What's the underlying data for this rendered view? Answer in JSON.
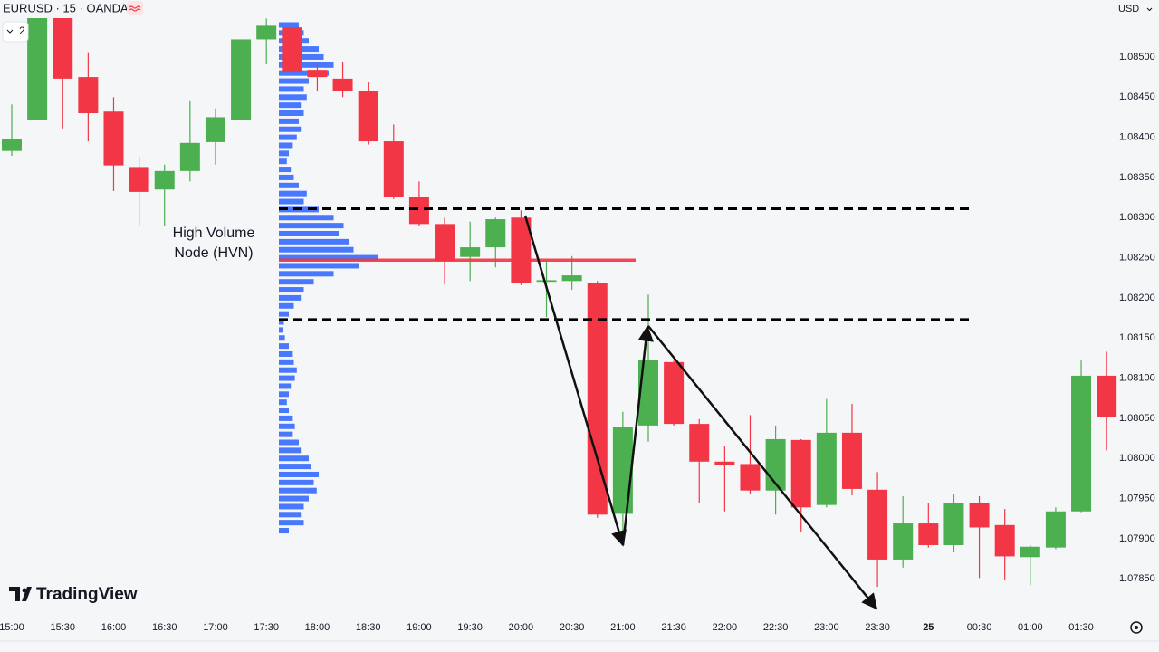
{
  "toolbar": {
    "symbol": "EURUSD · 15 · OANDA",
    "interval_button": "2",
    "currency": "USD",
    "brand": "TradingView"
  },
  "chart_data": {
    "type": "candlestick",
    "categories": [
      "15:00",
      null,
      "15:30",
      null,
      "16:00",
      null,
      "16:30",
      null,
      "17:00",
      null,
      "17:30",
      null,
      "18:00",
      null,
      "18:30",
      null,
      "19:00",
      null,
      "19:30",
      null,
      "20:00",
      null,
      "20:30",
      null,
      "21:00",
      null,
      "21:30",
      null,
      "22:00",
      null,
      "22:30",
      null,
      "23:00",
      null,
      "23:30",
      null,
      "25",
      null,
      "00:30",
      null,
      "01:00",
      null,
      "01:30",
      null
    ],
    "open": [
      1.08383,
      1.08421,
      1.08551,
      1.08475,
      1.08432,
      1.08363,
      1.08335,
      1.08358,
      1.08394,
      1.08422,
      1.08522,
      1.08537,
      1.08484,
      1.08473,
      1.08458,
      1.08395,
      1.08326,
      1.08292,
      1.08251,
      1.08263,
      1.083,
      1.0822,
      1.08221,
      1.08219,
      1.07931,
      1.08041,
      1.0812,
      1.08043,
      1.07996,
      1.07993,
      1.0796,
      1.08023,
      1.07942,
      1.08032,
      1.07961,
      1.07874,
      1.07919,
      1.07892,
      1.07945,
      1.07917,
      1.07877,
      1.07889,
      1.07934,
      1.08103
    ],
    "high": [
      1.08441,
      1.08565,
      1.0856,
      1.08506,
      1.0845,
      1.08376,
      1.08366,
      1.08446,
      1.08436,
      1.08522,
      1.08548,
      1.08539,
      1.08494,
      1.08494,
      1.08469,
      1.08416,
      1.08345,
      1.083,
      1.08295,
      1.083,
      1.08309,
      1.08247,
      1.08252,
      1.08221,
      1.08058,
      1.08204,
      1.08122,
      1.08049,
      1.08015,
      1.08054,
      1.08041,
      1.08024,
      1.08074,
      1.08068,
      1.07983,
      1.07953,
      1.07945,
      1.07956,
      1.07953,
      1.07937,
      1.07892,
      1.07939,
      1.08122,
      1.08133
    ],
    "low": [
      1.08377,
      1.08421,
      1.08411,
      1.08395,
      1.08333,
      1.08289,
      1.08289,
      1.08345,
      1.08366,
      1.08422,
      1.08491,
      1.08479,
      1.08458,
      1.0845,
      1.08391,
      1.08323,
      1.08289,
      1.08217,
      1.08221,
      1.08238,
      1.08216,
      1.08176,
      1.0821,
      1.07926,
      1.07906,
      1.08021,
      1.08041,
      1.07944,
      1.07934,
      1.07956,
      1.0793,
      1.07908,
      1.07939,
      1.07954,
      1.0784,
      1.07864,
      1.07889,
      1.07883,
      1.07851,
      1.07849,
      1.07842,
      1.07887,
      1.07933,
      1.0801
    ],
    "close": [
      1.08398,
      1.08554,
      1.08473,
      1.0843,
      1.08365,
      1.08332,
      1.08358,
      1.08393,
      1.08425,
      1.08522,
      1.08539,
      1.08481,
      1.08475,
      1.08458,
      1.08395,
      1.08326,
      1.08292,
      1.08246,
      1.08263,
      1.08298,
      1.08219,
      1.08222,
      1.08228,
      1.0793,
      1.08039,
      1.08123,
      1.08043,
      1.07996,
      1.07992,
      1.0796,
      1.08024,
      1.07939,
      1.08032,
      1.07962,
      1.07874,
      1.07919,
      1.07892,
      1.07945,
      1.07914,
      1.07878,
      1.0789,
      1.07934,
      1.08103,
      1.08052
    ],
    "up_color": "#4caf50",
    "down_color": "#f23645",
    "ylim": [
      1.07804,
      1.08571
    ],
    "yticks": [
      {
        "value": 1.085,
        "label": "1.08500"
      },
      {
        "value": 1.0845,
        "label": "1.08450"
      },
      {
        "value": 1.084,
        "label": "1.08400"
      },
      {
        "value": 1.0835,
        "label": "1.08350"
      },
      {
        "value": 1.083,
        "label": "1.08300"
      },
      {
        "value": 1.0825,
        "label": "1.08250"
      },
      {
        "value": 1.082,
        "label": "1.08200"
      },
      {
        "value": 1.0815,
        "label": "1.08150"
      },
      {
        "value": 1.081,
        "label": "1.08100"
      },
      {
        "value": 1.0805,
        "label": "1.08050"
      },
      {
        "value": 1.08,
        "label": "1.08000"
      },
      {
        "value": 1.0795,
        "label": "1.07950"
      },
      {
        "value": 1.079,
        "label": "1.07900"
      },
      {
        "value": 1.0785,
        "label": "1.07850"
      }
    ],
    "grid": false,
    "volume_profile": {
      "color": "#2962ff",
      "prices": [
        1.0854,
        1.0853,
        1.0852,
        1.0851,
        1.085,
        1.0849,
        1.0848,
        1.0847,
        1.0846,
        1.0845,
        1.0844,
        1.0843,
        1.0842,
        1.0841,
        1.084,
        1.0839,
        1.0838,
        1.0837,
        1.0836,
        1.0835,
        1.0834,
        1.0833,
        1.0832,
        1.0831,
        1.083,
        1.0829,
        1.0828,
        1.0827,
        1.0826,
        1.0825,
        1.0824,
        1.0823,
        1.0822,
        1.0821,
        1.082,
        1.0819,
        1.0818,
        1.0817,
        1.0816,
        1.0815,
        1.0814,
        1.0813,
        1.0812,
        1.0811,
        1.081,
        1.0809,
        1.0808,
        1.0807,
        1.0806,
        1.0805,
        1.0804,
        1.0803,
        1.0802,
        1.0801,
        1.08,
        1.0799,
        1.0798,
        1.0797,
        1.0796,
        1.0795,
        1.0794,
        1.0793,
        1.0792,
        1.0791
      ],
      "volumes": [
        20,
        25,
        30,
        40,
        45,
        55,
        50,
        30,
        25,
        28,
        22,
        25,
        20,
        22,
        18,
        14,
        10,
        8,
        12,
        15,
        20,
        28,
        25,
        40,
        55,
        65,
        60,
        70,
        75,
        100,
        80,
        55,
        35,
        25,
        22,
        15,
        10,
        5,
        4,
        6,
        10,
        14,
        15,
        18,
        16,
        12,
        10,
        8,
        10,
        14,
        16,
        14,
        20,
        22,
        30,
        32,
        40,
        35,
        38,
        30,
        25,
        22,
        25,
        10
      ]
    },
    "levels": [
      {
        "price": 1.08311,
        "style": "dashed",
        "color": "#000000"
      },
      {
        "price": 1.08173,
        "style": "dashed",
        "color": "#000000"
      },
      {
        "price": 1.08247,
        "style": "solid",
        "color": "#f23645"
      }
    ],
    "annotation": [
      "High Volume",
      "Node (HVN)"
    ]
  }
}
